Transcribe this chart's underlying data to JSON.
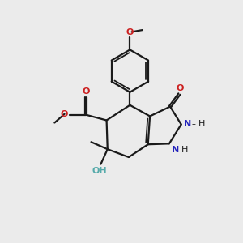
{
  "bg": "#ebebeb",
  "bc": "#1a1a1a",
  "Nc": "#2222bb",
  "Oc": "#cc2020",
  "OHc": "#55aaaa",
  "lw": 1.6,
  "lwi": 1.3,
  "fs": 8.0,
  "xlim": [
    0,
    10
  ],
  "ylim": [
    0,
    10
  ]
}
